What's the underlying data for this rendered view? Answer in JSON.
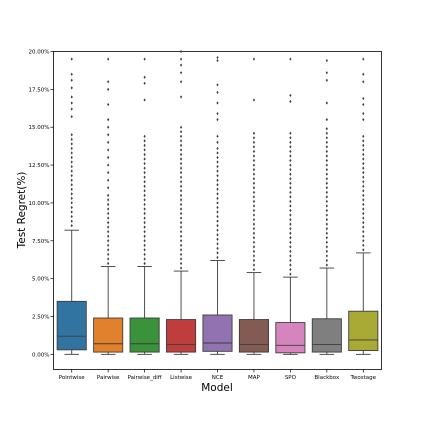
{
  "chart_data": {
    "type": "box",
    "title": "",
    "xlabel": "Model",
    "ylabel": "Test Regret(%)",
    "ylim": [
      -1.0,
      20.0
    ],
    "grid": false,
    "legend": "none",
    "y_ticks": [
      {
        "value": 0,
        "label": "0.00%"
      },
      {
        "value": 2.5,
        "label": "2.50%"
      },
      {
        "value": 5,
        "label": "5.00%"
      },
      {
        "value": 7.5,
        "label": "7.50%"
      },
      {
        "value": 10,
        "label": "10.00%"
      },
      {
        "value": 12.5,
        "label": "12.50%"
      },
      {
        "value": 15,
        "label": "15.00%"
      },
      {
        "value": 17.5,
        "label": "17.50%"
      },
      {
        "value": 20,
        "label": "20.00%"
      }
    ],
    "categories": [
      "Pointwise",
      "Pairwise",
      "Pairwise_diff",
      "Listwise",
      "NCE",
      "MAP",
      "SPO",
      "Blackbox",
      "Twostage"
    ],
    "colors": [
      "#3274a1",
      "#e1812c",
      "#3a923a",
      "#c03d3e",
      "#9372b2",
      "#845b53",
      "#d684bd",
      "#7f7f7f",
      "#a9aa35"
    ],
    "boxes": [
      {
        "whislo": 0.0,
        "q1": 0.3,
        "median": 1.2,
        "q3": 3.5,
        "whishi": 8.2,
        "fliers": [
          8.5,
          8.8,
          9.1,
          9.4,
          9.7,
          10.0,
          10.3,
          10.6,
          10.9,
          11.2,
          11.5,
          11.8,
          12.1,
          12.4,
          12.7,
          13.0,
          13.3,
          13.6,
          13.9,
          14.2,
          14.5,
          15.7,
          16.2,
          16.6,
          17.0,
          17.6,
          18.1,
          18.5,
          19.5
        ]
      },
      {
        "whislo": 0.0,
        "q1": 0.15,
        "median": 0.7,
        "q3": 2.4,
        "whishi": 5.8,
        "fliers": [
          6.0,
          6.3,
          6.6,
          6.9,
          7.2,
          7.5,
          7.8,
          8.1,
          8.4,
          8.7,
          9.0,
          9.3,
          9.6,
          9.9,
          10.2,
          10.5,
          11.0,
          11.5,
          12.0,
          12.5,
          13.0,
          13.5,
          14.0,
          14.5,
          15.0,
          15.5,
          16.5,
          17.5,
          18.0,
          19.5
        ]
      },
      {
        "whislo": 0.0,
        "q1": 0.15,
        "median": 0.7,
        "q3": 2.4,
        "whishi": 5.8,
        "fliers": [
          6.0,
          6.3,
          6.6,
          6.9,
          7.2,
          7.5,
          7.8,
          8.1,
          8.4,
          8.7,
          9.0,
          9.3,
          9.6,
          9.9,
          10.2,
          10.5,
          10.8,
          11.1,
          11.4,
          11.7,
          12.0,
          12.3,
          12.6,
          12.9,
          13.2,
          13.5,
          13.8,
          14.1,
          14.4,
          16.8,
          17.9,
          18.3,
          19.5
        ]
      },
      {
        "whislo": 0.0,
        "q1": 0.15,
        "median": 0.65,
        "q3": 2.3,
        "whishi": 5.5,
        "fliers": [
          5.7,
          6.0,
          6.3,
          6.6,
          6.9,
          7.2,
          7.5,
          7.8,
          8.1,
          8.4,
          8.7,
          9.0,
          9.3,
          9.6,
          9.9,
          10.2,
          10.5,
          10.8,
          11.1,
          11.4,
          11.7,
          12.0,
          12.3,
          12.6,
          12.9,
          13.2,
          13.5,
          13.8,
          14.1,
          14.4,
          14.7,
          15.0,
          17.0,
          18.0,
          18.6,
          19.1,
          19.5,
          20.0
        ]
      },
      {
        "whislo": 0.0,
        "q1": 0.2,
        "median": 0.75,
        "q3": 2.6,
        "whishi": 6.2,
        "fliers": [
          6.4,
          6.7,
          7.0,
          7.3,
          7.6,
          7.9,
          8.2,
          8.5,
          8.8,
          9.1,
          9.4,
          9.7,
          10.0,
          10.3,
          10.6,
          10.9,
          11.2,
          11.5,
          11.8,
          12.1,
          12.4,
          12.7,
          13.0,
          13.3,
          13.6,
          14.0,
          14.4,
          15.5,
          15.9,
          16.6,
          17.3,
          17.8,
          19.4,
          19.6
        ]
      },
      {
        "whislo": 0.0,
        "q1": 0.15,
        "median": 0.65,
        "q3": 2.3,
        "whishi": 5.4,
        "fliers": [
          5.6,
          5.9,
          6.2,
          6.5,
          6.8,
          7.1,
          7.4,
          7.7,
          8.0,
          8.3,
          8.6,
          8.9,
          9.2,
          9.5,
          9.8,
          10.1,
          10.4,
          10.7,
          11.0,
          11.3,
          11.6,
          11.9,
          12.2,
          12.5,
          12.8,
          13.1,
          13.4,
          13.7,
          14.0,
          14.3,
          14.6,
          16.8,
          19.5
        ]
      },
      {
        "whislo": 0.0,
        "q1": 0.1,
        "median": 0.6,
        "q3": 2.1,
        "whishi": 5.1,
        "fliers": [
          5.3,
          5.6,
          5.9,
          6.2,
          6.5,
          6.8,
          7.1,
          7.4,
          7.7,
          8.0,
          8.3,
          8.6,
          8.9,
          9.2,
          9.5,
          9.8,
          10.1,
          10.4,
          10.7,
          11.0,
          11.3,
          11.6,
          11.9,
          12.2,
          12.5,
          12.8,
          13.1,
          13.4,
          13.7,
          14.0,
          14.3,
          14.6,
          16.7,
          17.1,
          19.5
        ]
      },
      {
        "whislo": 0.0,
        "q1": 0.15,
        "median": 0.65,
        "q3": 2.35,
        "whishi": 5.7,
        "fliers": [
          5.9,
          6.2,
          6.5,
          6.8,
          7.1,
          7.4,
          7.7,
          8.0,
          8.3,
          8.6,
          8.9,
          9.2,
          9.5,
          9.8,
          10.1,
          10.4,
          10.7,
          11.0,
          11.3,
          11.6,
          11.9,
          12.2,
          12.5,
          12.8,
          13.1,
          13.4,
          13.7,
          14.0,
          14.3,
          14.6,
          14.9,
          15.5,
          16.6,
          18.1,
          18.6,
          19.4
        ]
      },
      {
        "whislo": 0.0,
        "q1": 0.25,
        "median": 0.95,
        "q3": 2.85,
        "whishi": 6.7,
        "fliers": [
          6.9,
          7.2,
          7.5,
          7.8,
          8.1,
          8.4,
          8.7,
          9.0,
          9.3,
          9.6,
          9.9,
          10.2,
          10.5,
          10.8,
          11.1,
          11.4,
          11.7,
          12.0,
          12.3,
          12.6,
          12.9,
          13.2,
          13.5,
          13.8,
          14.1,
          14.4,
          15.5,
          15.9,
          16.5,
          16.9,
          18.0,
          18.5,
          19.5
        ]
      }
    ]
  }
}
